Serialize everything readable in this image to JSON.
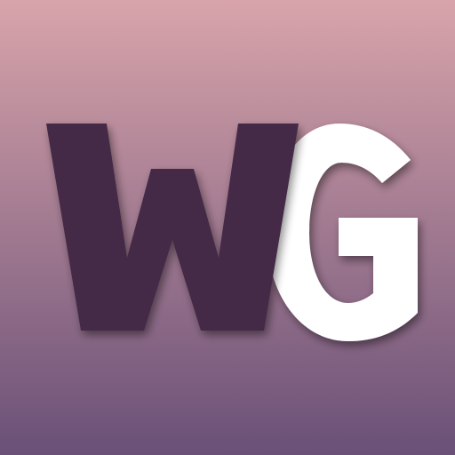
{
  "logo": {
    "letters": [
      "W",
      "G"
    ],
    "colors": {
      "background_top": "#d8a4aa",
      "background_bottom": "#6a5077",
      "letter_w": "#452a47",
      "letter_g": "#ffffff",
      "shadow": "#1e0f22"
    }
  }
}
